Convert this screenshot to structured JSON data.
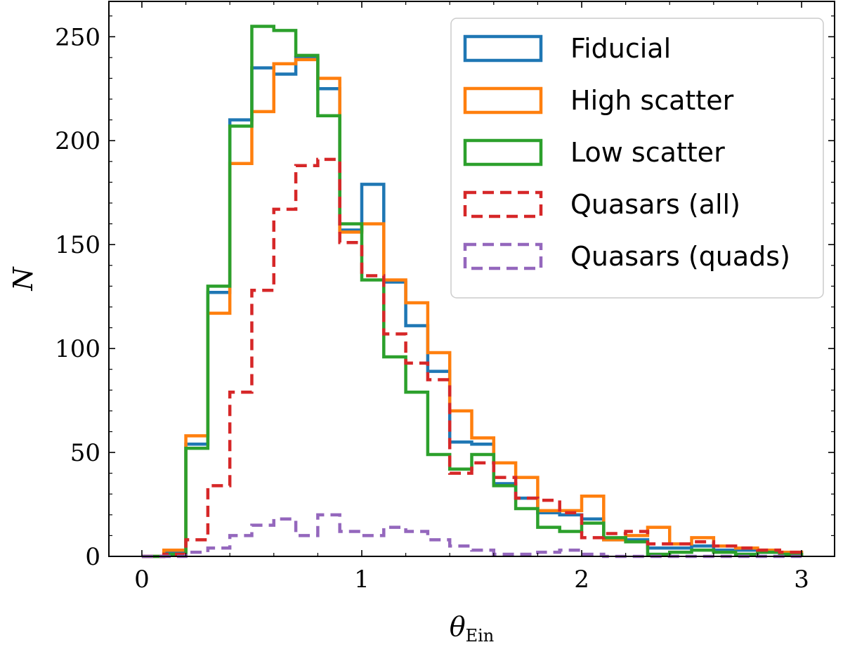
{
  "chart_data": {
    "type": "histogram",
    "xlabel": "θ",
    "xlabel_sub": "Ein",
    "ylabel": "N",
    "xlim": [
      -0.15,
      3.15
    ],
    "ylim": [
      0,
      267
    ],
    "xticks": [
      0,
      1,
      2,
      3
    ],
    "yticks": [
      0,
      50,
      100,
      150,
      200,
      250
    ],
    "grid": false,
    "legend_position": "top-right",
    "bin_edges": [
      0.0,
      0.1,
      0.2,
      0.3,
      0.4,
      0.5,
      0.6,
      0.7,
      0.8,
      0.9,
      1.0,
      1.1,
      1.2,
      1.3,
      1.4,
      1.5,
      1.6,
      1.7,
      1.8,
      1.9,
      2.0,
      2.1,
      2.2,
      2.3,
      2.4,
      2.5,
      2.6,
      2.7,
      2.8,
      2.9,
      3.0
    ],
    "series": [
      {
        "name": "Fiducial",
        "color": "#1f77b4",
        "style": "solid",
        "values": [
          0,
          2,
          54,
          127,
          210,
          235,
          232,
          240,
          225,
          157,
          179,
          132,
          111,
          89,
          55,
          54,
          35,
          28,
          21,
          20,
          18,
          8,
          8,
          4,
          4,
          5,
          3,
          3,
          2,
          1
        ]
      },
      {
        "name": "High scatter",
        "color": "#ff7f0e",
        "style": "solid",
        "values": [
          0,
          3,
          58,
          117,
          189,
          214,
          237,
          239,
          230,
          156,
          160,
          133,
          122,
          98,
          70,
          57,
          45,
          38,
          22,
          22,
          29,
          8,
          10,
          14,
          6,
          9,
          5,
          4,
          3,
          2
        ]
      },
      {
        "name": "Low scatter",
        "color": "#2ca02c",
        "style": "solid",
        "values": [
          0,
          1,
          52,
          130,
          207,
          255,
          253,
          241,
          212,
          160,
          133,
          96,
          79,
          49,
          42,
          49,
          34,
          23,
          14,
          12,
          16,
          9,
          7,
          1,
          2,
          3,
          2,
          1,
          2,
          1
        ]
      },
      {
        "name": "Quasars (all)",
        "color": "#d62728",
        "style": "dashed",
        "values": [
          0,
          1,
          8,
          34,
          79,
          128,
          167,
          188,
          191,
          151,
          135,
          107,
          93,
          85,
          40,
          45,
          38,
          28,
          27,
          21,
          9,
          11,
          12,
          6,
          6,
          7,
          5,
          4,
          3,
          2
        ]
      },
      {
        "name": "Quasars (quads)",
        "color": "#9467bd",
        "style": "dashed",
        "values": [
          0,
          0,
          2,
          4,
          10,
          15,
          18,
          10,
          20,
          12,
          10,
          14,
          12,
          8,
          5,
          3,
          1,
          1,
          2,
          3,
          1,
          0,
          0,
          0,
          0,
          0,
          0,
          0,
          0,
          0
        ]
      }
    ]
  }
}
